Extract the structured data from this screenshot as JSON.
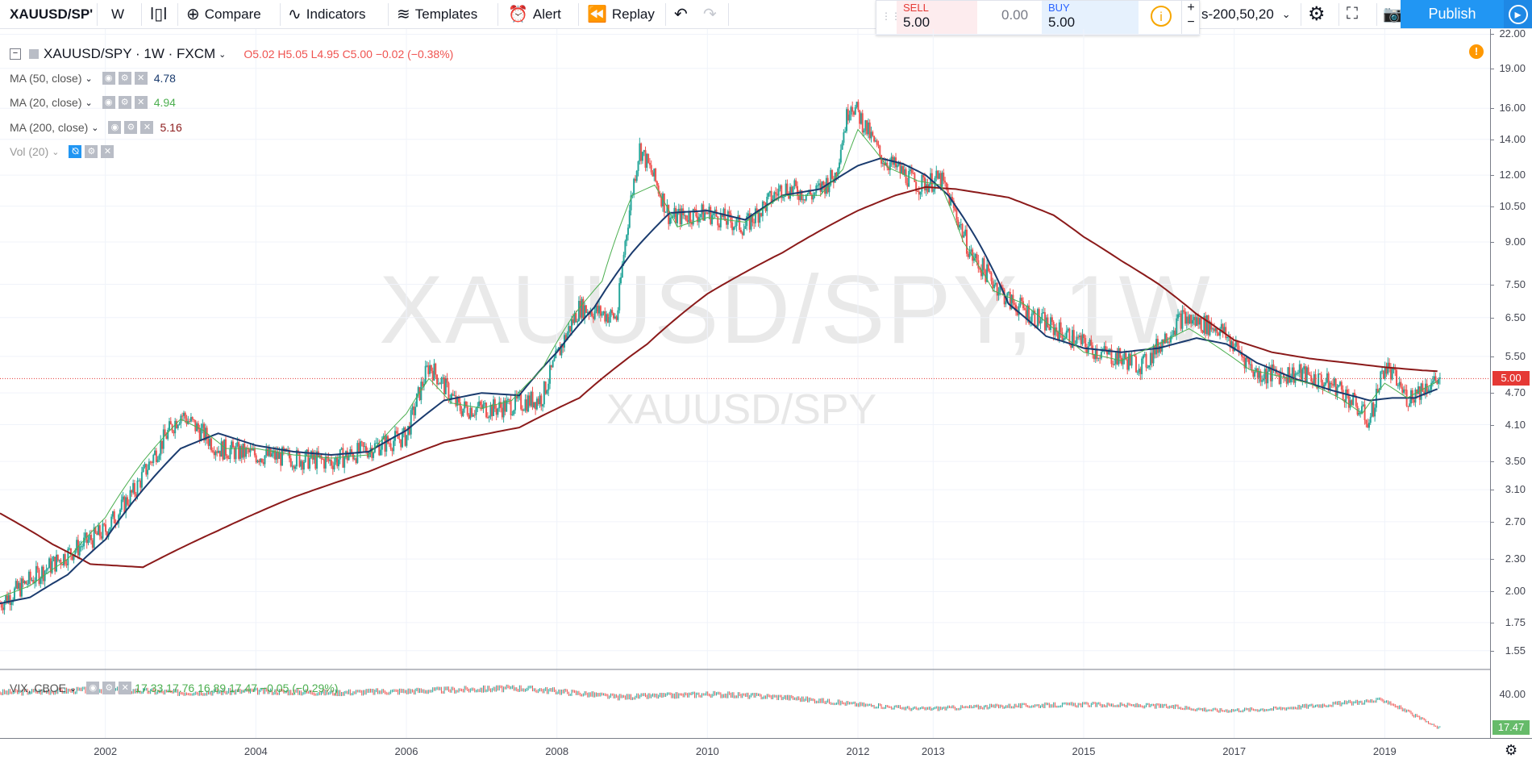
{
  "toolbar": {
    "symbol": "XAUUSD/SP'",
    "interval": "W",
    "compare": "Compare",
    "indicators": "Indicators",
    "templates": "Templates",
    "alert": "Alert",
    "replay": "Replay",
    "sell_label": "SELL",
    "sell_value": "5.00",
    "spread": "0.00",
    "buy_label": "BUY",
    "buy_value": "5.00",
    "layout_name": "s-200,50,20",
    "publish": "Publish",
    "plus": "+",
    "minus": "−"
  },
  "legend": {
    "title": "XAUUSD/SPY · 1W · FXCM",
    "ohlc": "O5.02   H5.05   L4.95   C5.00   −0.02 (−0.38%)",
    "ma50": {
      "label": "MA (50, close)",
      "value": "4.78",
      "color": "#1a3b6e"
    },
    "ma20": {
      "label": "MA (20, close)",
      "value": "4.94",
      "color": "#4caf50"
    },
    "ma200": {
      "label": "MA (200, close)",
      "value": "5.16",
      "color": "#8b1a1a"
    },
    "vol": {
      "label": "Vol (20)"
    },
    "sub": "VIX, CBOE",
    "sub_values": "17.33   17.76   16.89   17.47   −0.05 (−0.29%)"
  },
  "watermark": {
    "big": "XAUUSD/SPY, 1W",
    "small": "XAUUSD/SPY"
  },
  "price_axis": [
    "22.00",
    "19.00",
    "16.00",
    "14.00",
    "12.00",
    "10.50",
    "9.00",
    "7.50",
    "6.50",
    "5.50",
    "4.70",
    "4.10",
    "3.50",
    "3.10",
    "2.70",
    "2.30",
    "2.00",
    "1.75",
    "1.55"
  ],
  "current_price": "5.00",
  "sub_axis": [
    "40.00"
  ],
  "sub_current": "17.47",
  "time_axis": [
    "2002",
    "2004",
    "2006",
    "2008",
    "2010",
    "2012",
    "2013",
    "2015",
    "2017",
    "2019"
  ],
  "colors": {
    "up": "#26a69a",
    "down": "#ef5350",
    "price_line": "#e53935",
    "sub_tag": "#66bb6a",
    "accent": "#2196f3"
  },
  "chart_data": {
    "type": "line",
    "title": "XAUUSD/SPY · 1W · FXCM",
    "y_scale": "log",
    "ylim": [
      1.45,
      22.5
    ],
    "series": [
      {
        "name": "MA (200, close)",
        "x": [
          2000.6,
          2001.3,
          2001.8,
          2002.5,
          2003.5,
          2004.5,
          2005.5,
          2006.5,
          2007.5,
          2008.3,
          2009.2,
          2010,
          2011,
          2012,
          2012.5,
          2012.9,
          2013.3,
          2014,
          2014.6,
          2015,
          2015.5,
          2016,
          2016.5,
          2017,
          2017.5,
          2018,
          2018.5,
          2019,
          2019.5,
          2019.7
        ],
        "values": [
          2.8,
          2.45,
          2.25,
          2.22,
          2.6,
          3.0,
          3.35,
          3.8,
          4.05,
          4.6,
          5.8,
          7.2,
          8.6,
          10.3,
          11.0,
          11.4,
          11.3,
          10.9,
          10.1,
          9.2,
          8.3,
          7.5,
          6.6,
          5.9,
          5.6,
          5.45,
          5.35,
          5.25,
          5.18,
          5.16
        ]
      },
      {
        "name": "MA (50, close)",
        "x": [
          2000.6,
          2001,
          2001.5,
          2002,
          2002.5,
          2003,
          2003.5,
          2004,
          2004.5,
          2005,
          2005.5,
          2006,
          2006.5,
          2007,
          2007.5,
          2008,
          2008.5,
          2009,
          2009.5,
          2010,
          2010.5,
          2011,
          2011.5,
          2012,
          2012.3,
          2012.6,
          2012.9,
          2013.2,
          2013.6,
          2014,
          2014.5,
          2015,
          2015.5,
          2016,
          2016.5,
          2016.9,
          2017.3,
          2017.8,
          2018.3,
          2018.8,
          2019.1,
          2019.4,
          2019.7
        ],
        "values": [
          1.9,
          1.95,
          2.15,
          2.5,
          3.1,
          3.7,
          3.95,
          3.75,
          3.65,
          3.6,
          3.65,
          4.0,
          4.55,
          4.7,
          4.65,
          5.6,
          6.8,
          8.6,
          10.2,
          10.3,
          9.9,
          11.0,
          11.3,
          12.5,
          12.9,
          12.6,
          12.0,
          11.0,
          9.0,
          6.9,
          6.0,
          5.7,
          5.6,
          5.7,
          5.95,
          5.8,
          5.35,
          5.0,
          4.75,
          4.55,
          4.6,
          4.6,
          4.78
        ]
      },
      {
        "name": "MA (20, close)",
        "x": [
          2000.6,
          2001,
          2001.5,
          2002,
          2002.5,
          2003,
          2003.3,
          2003.6,
          2004,
          2004.5,
          2005,
          2005.5,
          2006,
          2006.3,
          2006.6,
          2007,
          2007.4,
          2007.8,
          2008.2,
          2008.6,
          2009,
          2009.3,
          2009.6,
          2010,
          2010.5,
          2011,
          2011.5,
          2011.8,
          2012,
          2012.4,
          2012.8,
          2013.1,
          2013.4,
          2013.8,
          2014.2,
          2014.6,
          2015,
          2015.5,
          2016,
          2016.4,
          2016.8,
          2017.2,
          2017.6,
          2018,
          2018.4,
          2018.7,
          2019,
          2019.3,
          2019.7
        ],
        "values": [
          1.95,
          2.05,
          2.3,
          2.75,
          3.5,
          4.2,
          4.0,
          3.7,
          3.7,
          3.6,
          3.55,
          3.6,
          4.3,
          5.0,
          4.5,
          4.4,
          4.55,
          5.2,
          6.5,
          7.6,
          11.0,
          11.5,
          9.6,
          10.0,
          9.8,
          11.0,
          11.0,
          12.3,
          14.6,
          12.4,
          11.7,
          11.5,
          9.0,
          7.3,
          6.9,
          6.2,
          5.6,
          5.4,
          5.8,
          6.2,
          5.7,
          5.2,
          5.05,
          4.9,
          4.6,
          4.3,
          4.9,
          4.6,
          4.94
        ]
      }
    ],
    "price_path": {
      "x": [
        2000.6,
        2001.2,
        2002,
        2002.4,
        2003,
        2003.5,
        2004,
        2005,
        2006,
        2006.3,
        2006.7,
        2007.2,
        2007.8,
        2008.3,
        2008.8,
        2009.1,
        2009.5,
        2010,
        2010.5,
        2011,
        2011.4,
        2011.7,
        2011.9,
        2012.3,
        2012.8,
        2013.1,
        2013.5,
        2014,
        2014.6,
        2015.2,
        2015.8,
        2016.3,
        2016.8,
        2017.3,
        2017.9,
        2018.4,
        2018.8,
        2019,
        2019.3,
        2019.6,
        2019.75
      ],
      "values": [
        1.9,
        2.2,
        2.6,
        3.1,
        4.3,
        3.7,
        3.6,
        3.5,
        3.9,
        5.3,
        4.4,
        4.4,
        4.6,
        6.8,
        6.5,
        13.5,
        10.0,
        10.2,
        9.6,
        11.4,
        11.0,
        12.0,
        16.5,
        13.0,
        11.5,
        11.8,
        8.5,
        7.0,
        6.2,
        5.6,
        5.3,
        6.5,
        6.2,
        5.1,
        5.1,
        4.8,
        4.15,
        5.3,
        4.6,
        4.9,
        5.0
      ]
    },
    "sub_series": {
      "name": "VIX, CBOE",
      "x": [
        2000.6,
        2002,
        2003,
        2004,
        2005,
        2006,
        2007.5,
        2008,
        2008.8,
        2009.5,
        2010,
        2011,
        2012,
        2012.8,
        2014,
        2015,
        2016,
        2016.8,
        2017.5,
        2018,
        2018.5,
        2019,
        2019.7
      ],
      "values": [
        41,
        43,
        41,
        42,
        41,
        42,
        44,
        42,
        38,
        39,
        40,
        38,
        33,
        30,
        32,
        33,
        32,
        29,
        30,
        32,
        34,
        36,
        17.5
      ]
    },
    "xlim": [
      2000.6,
      2020.4
    ]
  }
}
